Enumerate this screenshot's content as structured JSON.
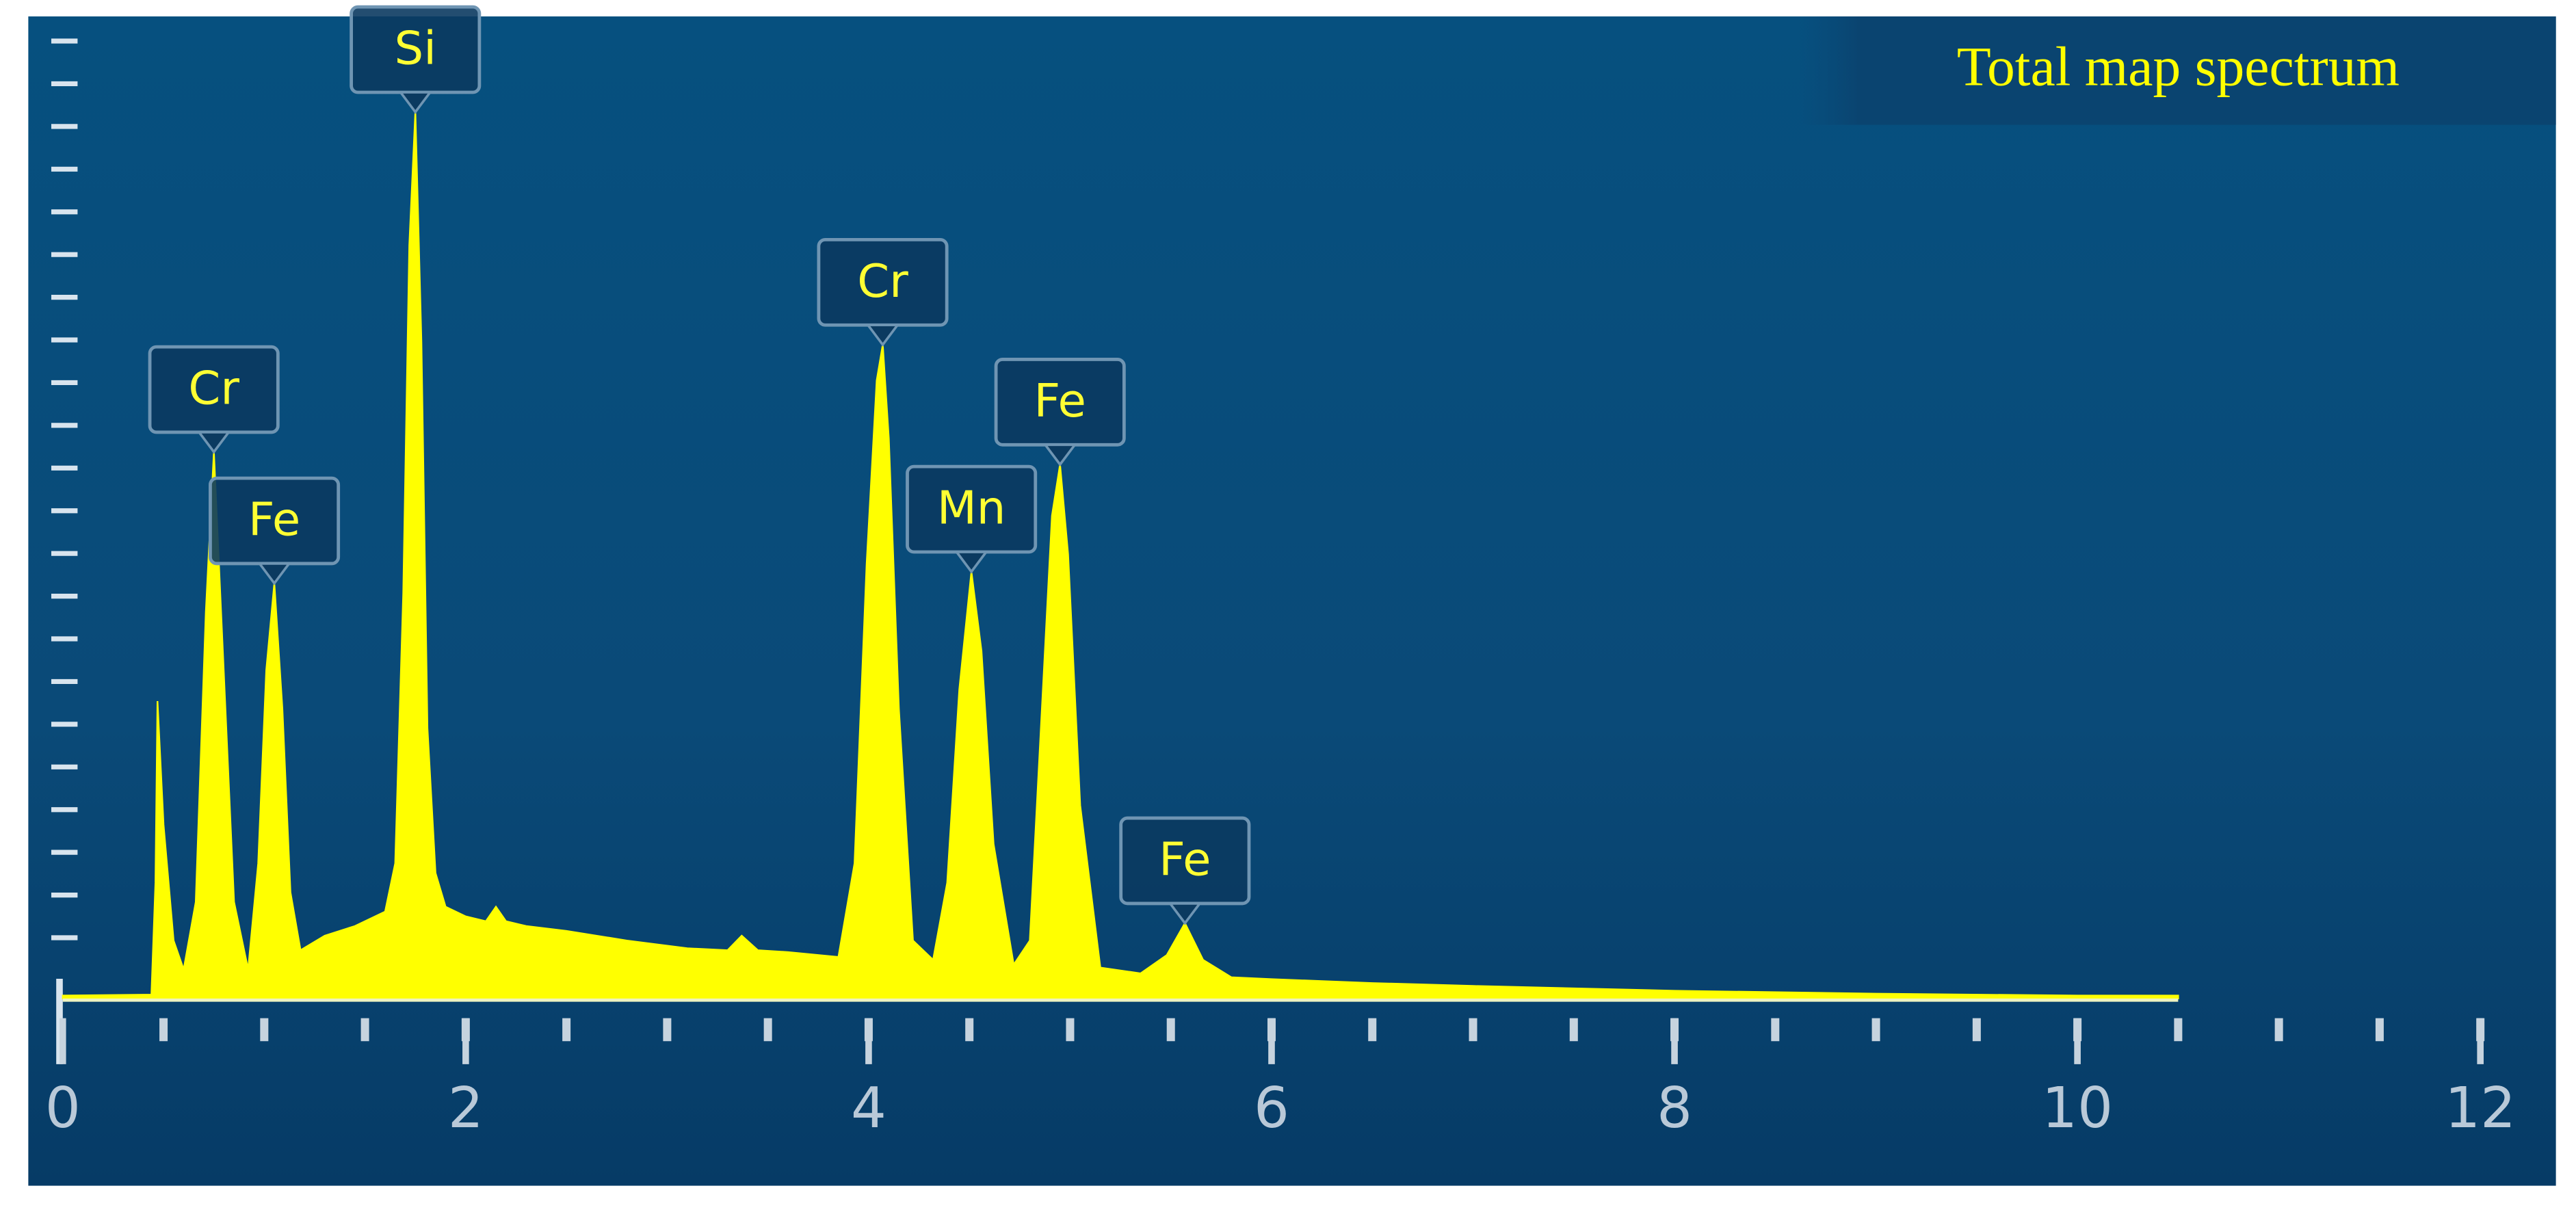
{
  "chart_data": {
    "type": "area",
    "title": "Total map spectrum",
    "color": "#ffff00",
    "xlim": [
      0,
      12
    ],
    "ylim": [
      0,
      100
    ],
    "xticks": [
      0,
      2,
      4,
      6,
      8,
      10,
      12
    ],
    "x": [
      0,
      0.44,
      0.46,
      0.47,
      0.5,
      0.55,
      0.6,
      0.66,
      0.71,
      0.75,
      0.79,
      0.85,
      0.92,
      0.97,
      1.01,
      1.05,
      1.09,
      1.13,
      1.18,
      1.3,
      1.45,
      1.6,
      1.65,
      1.69,
      1.72,
      1.75,
      1.78,
      1.81,
      1.85,
      1.9,
      2.0,
      2.1,
      2.15,
      2.2,
      2.3,
      2.5,
      2.8,
      3.1,
      3.3,
      3.37,
      3.45,
      3.6,
      3.85,
      3.93,
      3.99,
      4.04,
      4.07,
      4.1,
      4.15,
      4.22,
      4.32,
      4.39,
      4.45,
      4.51,
      4.56,
      4.62,
      4.72,
      4.8,
      4.86,
      4.91,
      4.95,
      4.99,
      5.05,
      5.15,
      5.35,
      5.48,
      5.57,
      5.66,
      5.8,
      6.0,
      6.5,
      7.0,
      8.0,
      9.0,
      10.0,
      10.5
    ],
    "y": [
      0.3,
      0.4,
      12,
      30.8,
      18,
      6,
      3,
      10,
      40,
      56.6,
      38,
      10,
      3,
      14,
      34,
      43,
      30,
      11,
      5,
      6.5,
      7.5,
      9,
      14,
      42,
      78,
      91.8,
      68,
      28,
      13,
      9.5,
      8.5,
      8,
      9.5,
      8,
      7.5,
      7,
      6,
      5.2,
      5,
      6.5,
      5,
      4.8,
      4.3,
      14,
      45,
      64,
      67.7,
      58,
      30,
      6,
      4,
      12,
      32,
      44.2,
      36,
      16,
      3.5,
      6,
      30,
      50,
      55.3,
      46,
      20,
      3.2,
      2.6,
      4.5,
      7.8,
      4,
      2.2,
      2,
      1.6,
      1.3,
      0.8,
      0.5,
      0.3,
      0.3
    ],
    "annotations": [
      {
        "text": "Cr",
        "x": 0.75,
        "y": 56.6
      },
      {
        "text": "Fe",
        "x": 1.05,
        "y": 43
      },
      {
        "text": "Si",
        "x": 1.75,
        "y": 91.8
      },
      {
        "text": "Cr",
        "x": 4.07,
        "y": 67.7
      },
      {
        "text": "Mn",
        "x": 4.51,
        "y": 44.2
      },
      {
        "text": "Fe",
        "x": 4.95,
        "y": 55.3
      },
      {
        "text": "Fe",
        "x": 5.57,
        "y": 7.8
      }
    ]
  }
}
